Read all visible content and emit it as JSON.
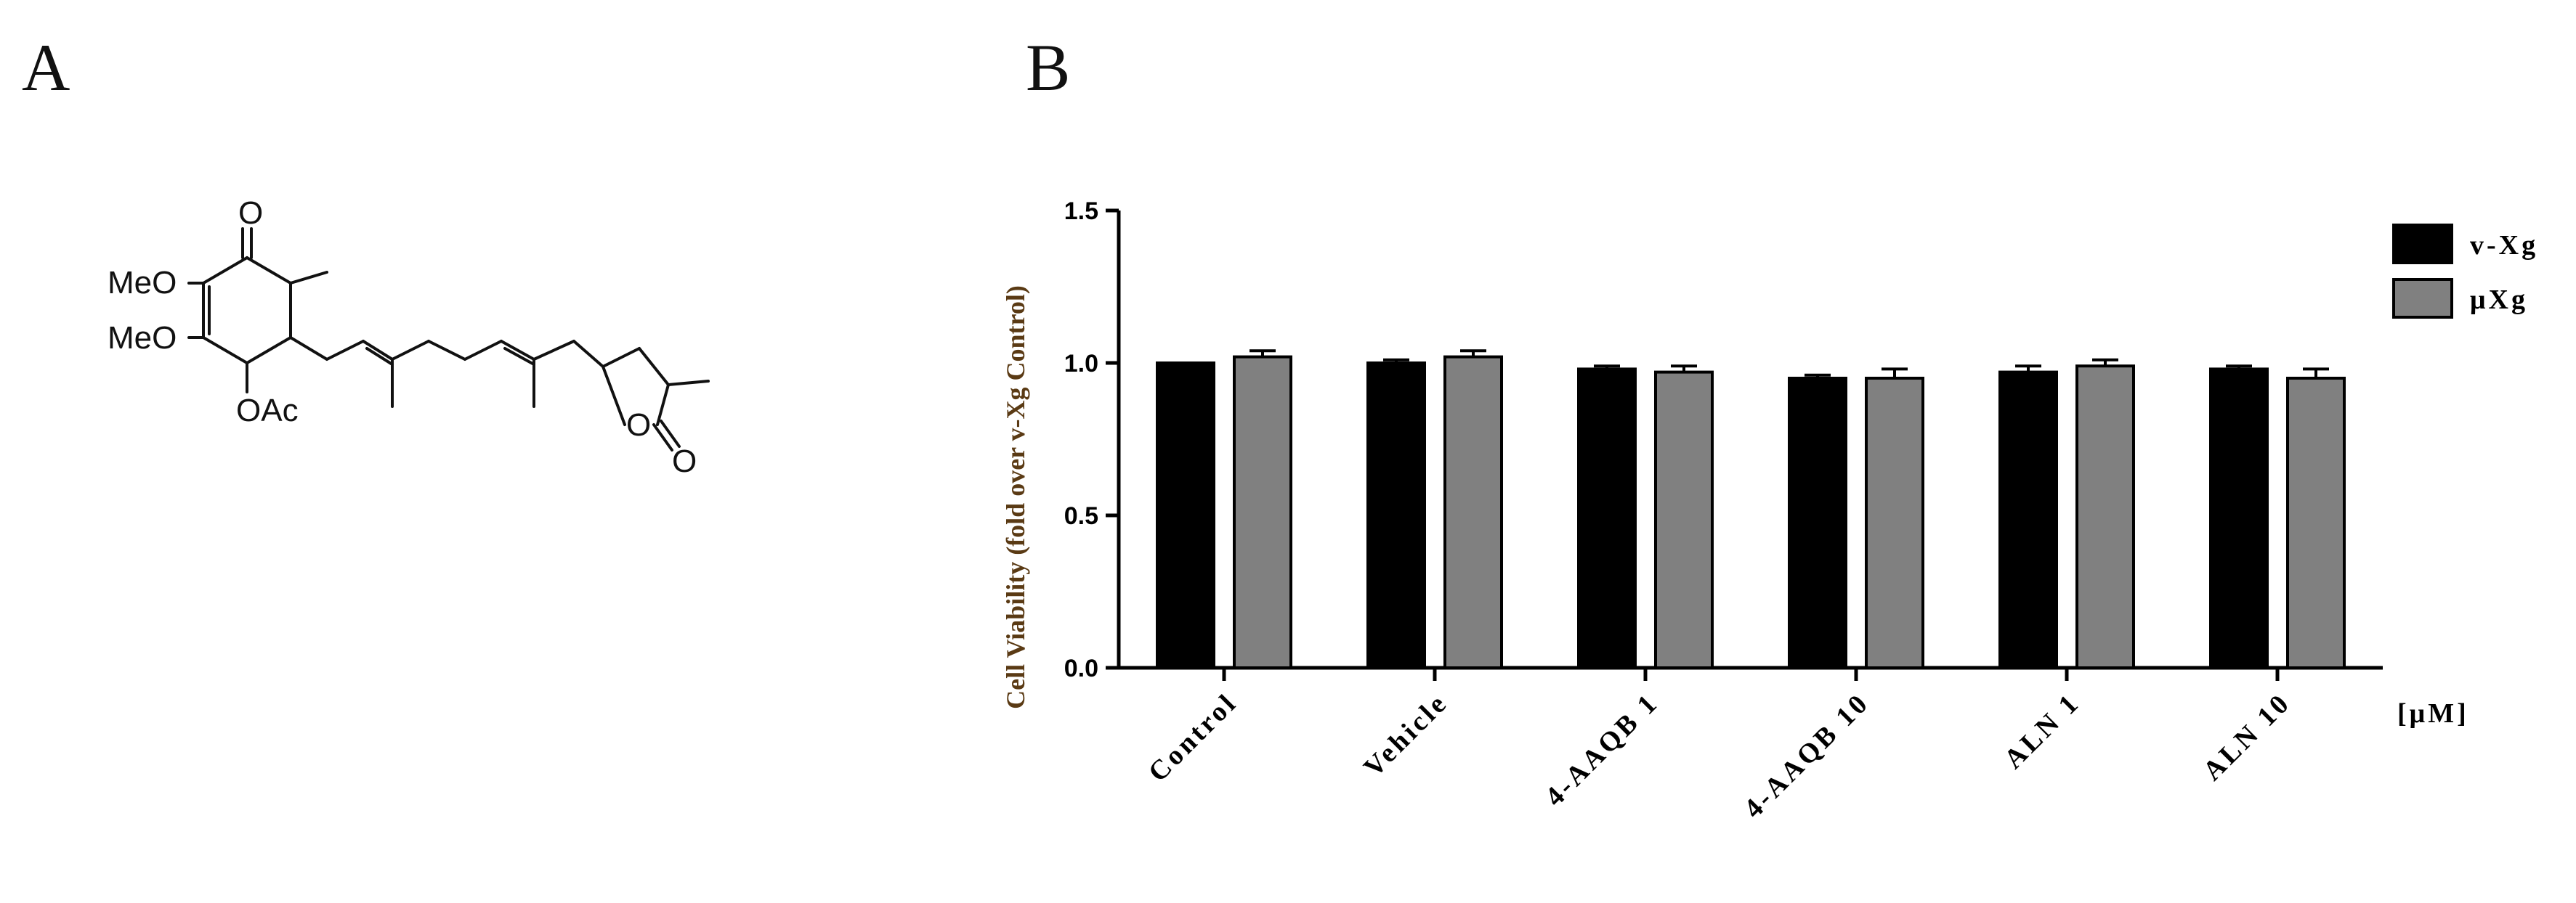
{
  "panel_a": {
    "label": "A",
    "atom_labels": {
      "ketone_o": "O",
      "meo_top": "MeO",
      "meo_bottom": "MeO",
      "oac": "OAc",
      "ring_o": "O",
      "lactone_o": "O"
    }
  },
  "panel_b": {
    "label": "B"
  },
  "chart_data": {
    "type": "bar",
    "title": "",
    "ylabel": "Cell Viability (fold over v-Xg Control)",
    "xlabel": "",
    "unit_label": "[μM]",
    "categories": [
      "Control",
      "Vehicle",
      "4-AAQB 1",
      "4-AAQB 10",
      "ALN 1",
      "ALN 10"
    ],
    "series": [
      {
        "name": "v-Xg",
        "color": "#000000",
        "values": [
          1.0,
          1.0,
          0.98,
          0.95,
          0.97,
          0.98
        ],
        "errors": [
          0.0,
          0.01,
          0.01,
          0.01,
          0.02,
          0.01
        ]
      },
      {
        "name": "μXg",
        "color": "#808080",
        "values": [
          1.02,
          1.02,
          0.97,
          0.95,
          0.99,
          0.95
        ],
        "errors": [
          0.02,
          0.02,
          0.02,
          0.03,
          0.02,
          0.03
        ]
      }
    ],
    "ylim": [
      0,
      1.5
    ],
    "yticks": [
      "0.0",
      "0.5",
      "1.0",
      "1.5"
    ],
    "ytick_values": [
      0,
      0.5,
      1.0,
      1.5
    ],
    "grid": false,
    "legend_position": "top-right"
  }
}
